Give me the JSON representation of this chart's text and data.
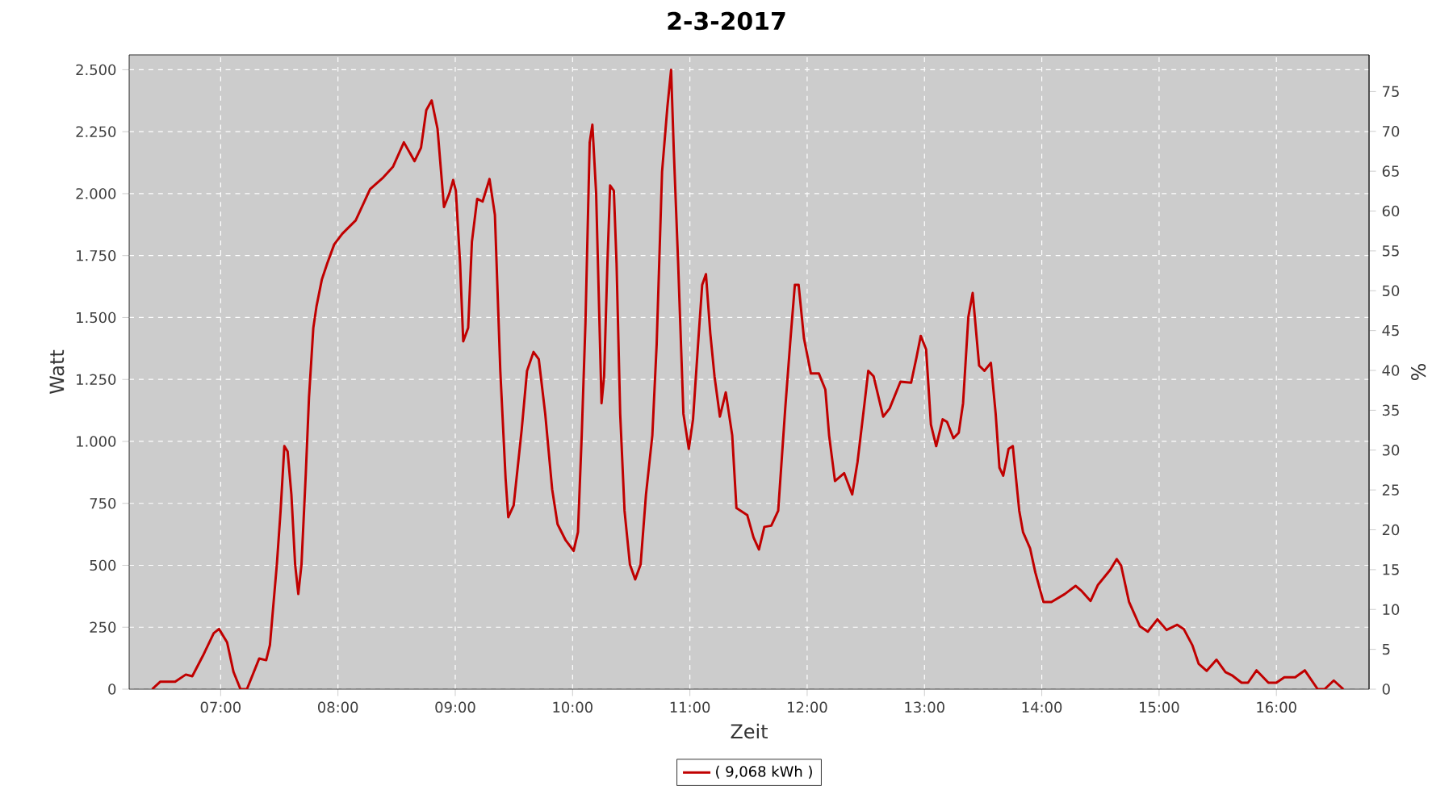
{
  "chart_data": {
    "type": "line",
    "title": "2-3-2017",
    "xlabel": "Zeit",
    "ylabel": "Watt",
    "y2label": "%",
    "x": [
      6.416,
      6.484,
      6.612,
      6.703,
      6.758,
      6.849,
      6.941,
      6.986,
      7.055,
      7.11,
      7.169,
      7.224,
      7.329,
      7.388,
      7.42,
      7.479,
      7.511,
      7.543,
      7.571,
      7.603,
      7.635,
      7.662,
      7.689,
      7.726,
      7.753,
      7.79,
      7.817,
      7.863,
      7.909,
      7.968,
      8.037,
      8.151,
      8.274,
      8.379,
      8.47,
      8.562,
      8.653,
      8.708,
      8.753,
      8.799,
      8.849,
      8.904,
      8.95,
      8.982,
      9.005,
      9.041,
      9.068,
      9.11,
      9.142,
      9.187,
      9.233,
      9.292,
      9.338,
      9.384,
      9.429,
      9.452,
      9.498,
      9.566,
      9.612,
      9.667,
      9.712,
      9.767,
      9.826,
      9.872,
      9.941,
      10.009,
      10.046,
      10.078,
      10.11,
      10.146,
      10.169,
      10.201,
      10.228,
      10.247,
      10.269,
      10.297,
      10.32,
      10.352,
      10.375,
      10.406,
      10.443,
      10.489,
      10.534,
      10.58,
      10.626,
      10.68,
      10.717,
      10.763,
      10.808,
      10.84,
      10.863,
      10.9,
      10.945,
      10.991,
      11.027,
      11.073,
      11.105,
      11.137,
      11.174,
      11.21,
      11.256,
      11.306,
      11.361,
      11.397,
      11.489,
      11.543,
      11.589,
      11.635,
      11.694,
      11.753,
      11.813,
      11.858,
      11.895,
      11.927,
      11.973,
      12.032,
      12.1,
      12.155,
      12.187,
      12.237,
      12.315,
      12.384,
      12.429,
      12.489,
      12.521,
      12.566,
      12.648,
      12.703,
      12.795,
      12.886,
      12.932,
      12.968,
      13.014,
      13.055,
      13.1,
      13.155,
      13.192,
      13.247,
      13.292,
      13.329,
      13.374,
      13.411,
      13.466,
      13.511,
      13.566,
      13.607,
      13.639,
      13.671,
      13.717,
      13.753,
      13.808,
      13.84,
      13.9,
      13.945,
      14.014,
      14.082,
      14.196,
      14.288,
      14.342,
      14.416,
      14.479,
      14.584,
      14.639,
      14.676,
      14.744,
      14.836,
      14.904,
      14.986,
      15.064,
      15.155,
      15.21,
      15.283,
      15.338,
      15.406,
      15.489,
      15.566,
      15.621,
      15.703,
      15.758,
      15.831,
      15.932,
      16.0,
      16.068,
      16.16,
      16.242,
      16.352,
      16.411,
      16.489,
      16.571
    ],
    "series": [
      {
        "name": "( 9,068 kWh )",
        "color": "#c00000",
        "values": [
          0,
          30,
          30,
          59,
          52,
          135,
          226,
          243,
          189,
          69,
          0,
          0,
          124,
          117,
          178,
          503,
          720,
          981,
          959,
          786,
          503,
          384,
          503,
          872,
          1176,
          1458,
          1545,
          1654,
          1719,
          1795,
          1838,
          1892,
          2018,
          2062,
          2109,
          2207,
          2131,
          2185,
          2337,
          2376,
          2261,
          1946,
          2001,
          2055,
          2012,
          1719,
          1404,
          1458,
          1806,
          1979,
          1968,
          2059,
          1914,
          1285,
          851,
          694,
          742,
          1046,
          1285,
          1361,
          1332,
          1111,
          807,
          666,
          601,
          558,
          634,
          1024,
          1480,
          2207,
          2278,
          2001,
          1502,
          1154,
          1263,
          1719,
          2033,
          2012,
          1719,
          1111,
          720,
          503,
          443,
          503,
          786,
          1024,
          1393,
          2088,
          2348,
          2500,
          2174,
          1719,
          1111,
          970,
          1089,
          1415,
          1632,
          1675,
          1437,
          1263,
          1100,
          1198,
          1024,
          731,
          703,
          612,
          564,
          655,
          660,
          720,
          1133,
          1415,
          1632,
          1632,
          1415,
          1274,
          1274,
          1209,
          1024,
          840,
          872,
          786,
          916,
          1154,
          1285,
          1263,
          1100,
          1133,
          1241,
          1237,
          1339,
          1426,
          1371,
          1068,
          981,
          1089,
          1079,
          1013,
          1035,
          1154,
          1502,
          1599,
          1306,
          1285,
          1317,
          1111,
          894,
          862,
          970,
          981,
          720,
          634,
          569,
          471,
          352,
          352,
          384,
          417,
          395,
          356,
          421,
          482,
          525,
          499,
          352,
          254,
          232,
          282,
          239,
          260,
          243,
          178,
          102,
          74,
          119,
          69,
          56,
          26,
          26,
          76,
          26,
          26,
          48,
          48,
          76,
          0,
          0,
          35,
          0
        ]
      }
    ],
    "xlim": [
      6.22,
      16.79
    ],
    "ylim": [
      0,
      2560
    ],
    "y2lim": [
      0,
      79.6
    ],
    "xticks": [
      {
        "value": 7,
        "label": "07:00"
      },
      {
        "value": 8,
        "label": "08:00"
      },
      {
        "value": 9,
        "label": "09:00"
      },
      {
        "value": 10,
        "label": "10:00"
      },
      {
        "value": 11,
        "label": "11:00"
      },
      {
        "value": 12,
        "label": "12:00"
      },
      {
        "value": 13,
        "label": "13:00"
      },
      {
        "value": 14,
        "label": "14:00"
      },
      {
        "value": 15,
        "label": "15:00"
      },
      {
        "value": 16,
        "label": "16:00"
      }
    ],
    "yticks": [
      0,
      250,
      500,
      750,
      {
        "value": 1000,
        "label": "1.000"
      },
      {
        "value": 1250,
        "label": "1.250"
      },
      {
        "value": 1500,
        "label": "1.500"
      },
      {
        "value": 1750,
        "label": "1.750"
      },
      {
        "value": 2000,
        "label": "2.000"
      },
      {
        "value": 2250,
        "label": "2.250"
      },
      {
        "value": 2500,
        "label": "2.500"
      }
    ],
    "y2ticks": [
      0,
      5,
      10,
      15,
      20,
      25,
      30,
      35,
      40,
      45,
      50,
      55,
      60,
      65,
      70,
      75
    ],
    "grid": true,
    "legend": "bottom",
    "line_style": "solid"
  }
}
